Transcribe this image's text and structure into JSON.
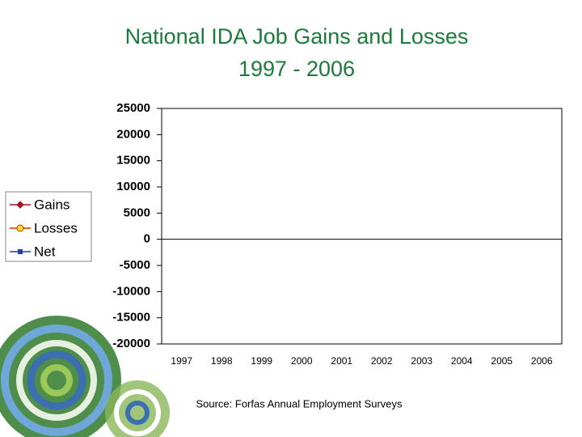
{
  "chart_data": {
    "type": "line",
    "title": "National IDA Job Gains and Losses",
    "subtitle": "1997 - 2006",
    "source": "Source: Forfas Annual Employment Surveys",
    "categories": [
      "1997",
      "1998",
      "1999",
      "2000",
      "2001",
      "2002",
      "2003",
      "2004",
      "2005",
      "2006"
    ],
    "series": [
      {
        "name": "Gains",
        "color": "#a0141e",
        "marker": "diamond",
        "marker_color": "#a0141e",
        "values": [
          null,
          null,
          null,
          null,
          null,
          null,
          null,
          null,
          null,
          null
        ]
      },
      {
        "name": "Losses",
        "color": "#cc3300",
        "marker": "circle",
        "marker_color": "#ffe030",
        "values": [
          null,
          null,
          null,
          null,
          null,
          null,
          null,
          null,
          null,
          null
        ]
      },
      {
        "name": "Net",
        "color": "#1f3fa8",
        "marker": "square",
        "marker_color": "#1f3fa8",
        "values": [
          null,
          null,
          null,
          null,
          null,
          null,
          null,
          null,
          null,
          null
        ]
      }
    ],
    "ylim": [
      -20000,
      25000
    ],
    "yticks": [
      -20000,
      -15000,
      -10000,
      -5000,
      0,
      5000,
      10000,
      15000,
      20000,
      25000
    ],
    "legend": "left"
  }
}
